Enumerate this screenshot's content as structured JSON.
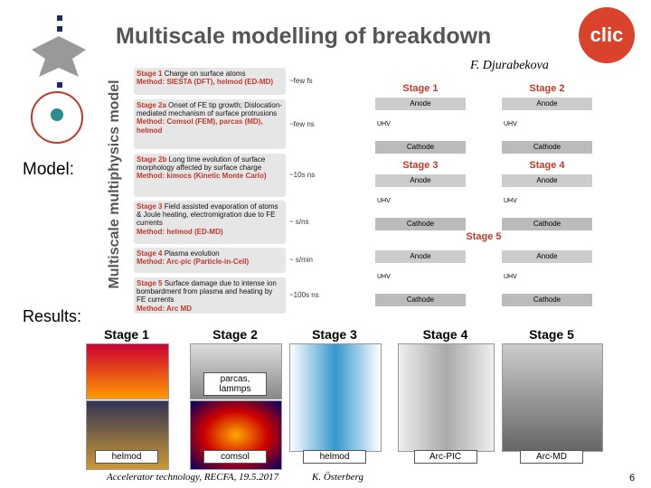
{
  "header": {
    "title": "Multiscale modelling of breakdown",
    "author": "F. Djurabekova",
    "logo": "clic"
  },
  "model_label": "Model:",
  "results_label": "Results:",
  "side_label": "Multiscale multiphysics model",
  "stages": [
    {
      "head": "Stage 1",
      "text": "Charge on surface atoms",
      "method": "Method: SIESTA (DFT), helmod (ED-MD)",
      "time": "~few fs"
    },
    {
      "head": "Stage 2a",
      "text": "Onset of FE tip growth; Dislocation-mediated mechanism of surface protrusions",
      "method": "Method: Comsol (FEM), parcas (MD), helmod",
      "time": "~few ns"
    },
    {
      "head": "Stage 2b",
      "text": "Long time evolution of surface morphology affected by surface charge",
      "method": "Method: kimocs (Kinetic Monte Carlo)",
      "time": "~10s ns"
    },
    {
      "head": "Stage 3",
      "text": "Field assisted evaporation of atoms & Joule heating, electromigration due to FE currents",
      "method": "Method: helmod (ED-MD)",
      "time": "~ s/ns"
    },
    {
      "head": "Stage 4",
      "text": "Plasma evolution",
      "method": "Method: Arc-pic (Particle-in-Cell)",
      "time": "~ s/min"
    },
    {
      "head": "Stage 5",
      "text": "Surface damage due to intense ion bombardment from plasma and heating by FE currents",
      "method": "Method: Arc MD",
      "time": "~100s ns"
    }
  ],
  "diagram": {
    "panels": [
      {
        "title": "Stage 1",
        "anode": "Anode",
        "cathode": "Cathode",
        "uhv": "UHV"
      },
      {
        "title": "Stage 2",
        "anode": "Anode",
        "cathode": "Cathode",
        "uhv": "UHV"
      },
      {
        "title": "Stage 3",
        "anode": "Anode",
        "cathode": "Cathode",
        "uhv": "UHV"
      },
      {
        "title": "Stage 4",
        "anode": "Anode",
        "cathode": "Cathode",
        "uhv": "UHV"
      }
    ],
    "stage5": {
      "title": "Stage 5",
      "panels": [
        {
          "anode": "Anode",
          "cathode": "Cathode",
          "uhv": "UHV"
        },
        {
          "anode": "Anode",
          "cathode": "Cathode",
          "uhv": "UHV"
        }
      ]
    }
  },
  "results": [
    {
      "title": "Stage 1",
      "tools": [
        "helmod"
      ]
    },
    {
      "title": "Stage 2",
      "tools": [
        "parcas, lammps",
        "comsol"
      ]
    },
    {
      "title": "Stage 3",
      "tools": [
        "helmod"
      ]
    },
    {
      "title": "Stage 4",
      "tools": [
        "Arc-PIC"
      ]
    },
    {
      "title": "Stage 5",
      "tools": [
        "Arc-MD"
      ]
    }
  ],
  "footer": {
    "event": "Accelerator technology, RECFA, 19.5.2017",
    "speaker": "K. Österberg",
    "page": "6"
  }
}
